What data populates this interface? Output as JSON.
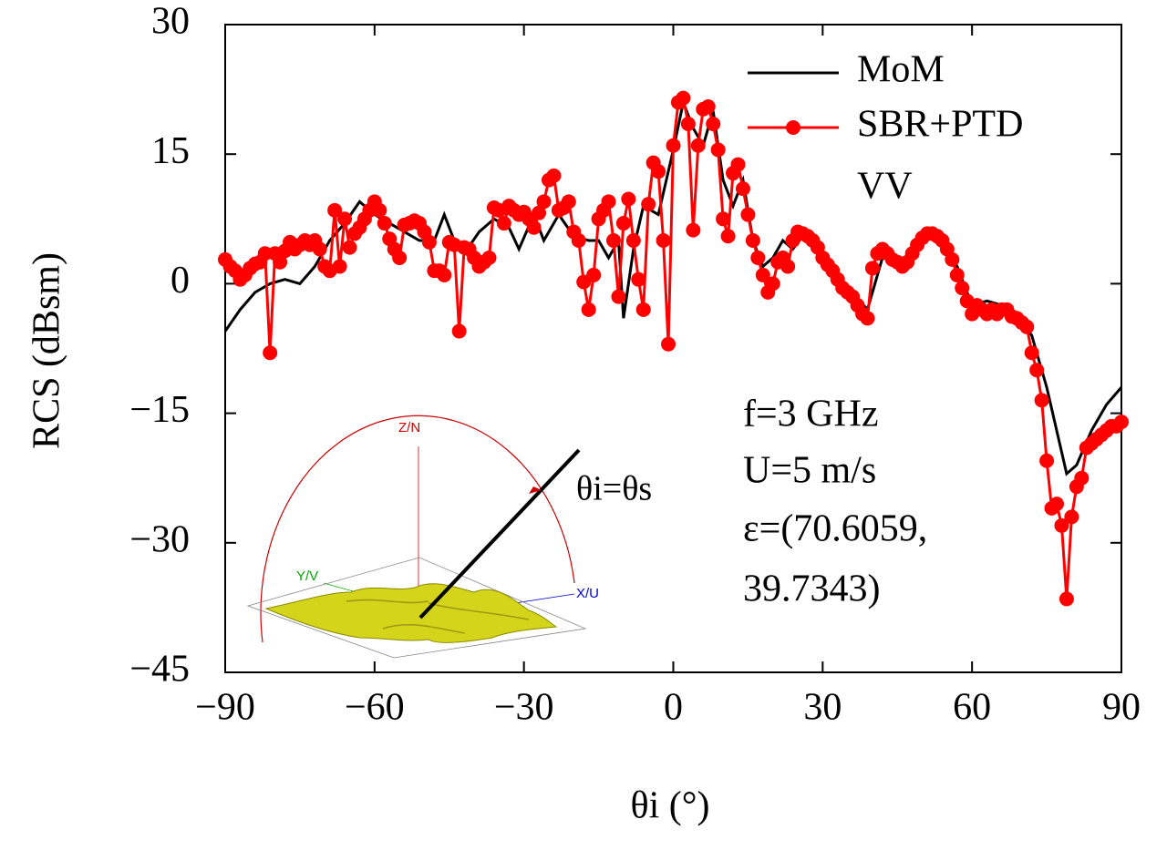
{
  "chart_data": {
    "type": "line",
    "xlabel": "θi (°)",
    "ylabel": "RCS (dBsm)",
    "xlim": [
      -90,
      90
    ],
    "ylim": [
      -45,
      30
    ],
    "xticks": [
      {
        "value": -90,
        "label": "−90"
      },
      {
        "value": -60,
        "label": "−60"
      },
      {
        "value": -30,
        "label": "−30"
      },
      0,
      30,
      60,
      90
    ],
    "yticks": [
      {
        "value": -45,
        "label": "−45"
      },
      {
        "value": -30,
        "label": "−30"
      },
      {
        "value": -15,
        "label": "−15"
      },
      0,
      15,
      30
    ],
    "grid": false,
    "legend": "upper right",
    "legend_note": "VV",
    "annotations": [
      "f=3 GHz",
      "U=5 m/s",
      "ε=(70.6059,",
      "39.7343)"
    ],
    "inset_labels": [
      "Z/N",
      "Y/V",
      "X/U",
      "θi=θs"
    ],
    "series": [
      {
        "name": "MoM",
        "color": "#000000",
        "marker": false,
        "x": [
          -90,
          -87,
          -84,
          -81,
          -78,
          -75,
          -72,
          -69,
          -66,
          -63,
          -60,
          -57,
          -54,
          -51,
          -48,
          -46,
          -44,
          -42,
          -39,
          -36,
          -33,
          -31,
          -28,
          -26,
          -23,
          -20,
          -17,
          -15,
          -13,
          -11,
          -10,
          -8,
          -6,
          -3,
          0,
          2,
          4,
          6,
          8,
          10,
          12,
          14,
          16,
          18,
          20,
          22,
          24,
          26,
          30,
          33,
          36,
          39,
          42,
          45,
          48,
          51,
          54,
          57,
          60,
          63,
          66,
          69,
          72,
          75,
          77,
          79,
          81,
          84,
          87,
          90
        ],
        "values": [
          -5.5,
          -3,
          -1,
          0,
          0.5,
          0,
          2,
          5,
          7,
          9.5,
          8,
          7,
          6,
          5,
          5,
          8,
          5,
          3.5,
          6,
          7.5,
          6.5,
          4,
          8,
          5,
          8,
          5.5,
          5,
          5,
          3,
          5,
          -4,
          4,
          9,
          8,
          15.5,
          21,
          18,
          16,
          20,
          12,
          9,
          12,
          5,
          2,
          3,
          5,
          4,
          5.5,
          3.5,
          0.5,
          -1,
          -3,
          3,
          2.5,
          3,
          5.5,
          5,
          2,
          -2.5,
          -2,
          -2.5,
          -3.5,
          -6,
          -12,
          -17,
          -22,
          -21,
          -17,
          -14,
          -12
        ]
      },
      {
        "name": "SBR+PTD",
        "color": "#ff0000",
        "marker": true,
        "x": [
          -90,
          -89,
          -88,
          -87,
          -86,
          -85,
          -84,
          -83,
          -82,
          -81,
          -80,
          -79,
          -78,
          -77,
          -76,
          -75,
          -74,
          -73,
          -72,
          -71,
          -70,
          -69,
          -68,
          -67,
          -66,
          -65,
          -64,
          -63,
          -62,
          -61,
          -60,
          -59,
          -58,
          -57,
          -56,
          -55,
          -54,
          -53,
          -52,
          -51,
          -50,
          -49,
          -48,
          -47,
          -46,
          -45,
          -44,
          -43,
          -42,
          -41,
          -40,
          -39,
          -38,
          -37,
          -36,
          -35,
          -34,
          -33,
          -32,
          -31,
          -30,
          -29,
          -28,
          -27,
          -26,
          -25,
          -24,
          -23,
          -22,
          -21,
          -20,
          -19,
          -18,
          -17,
          -16,
          -15,
          -14,
          -13,
          -12,
          -11,
          -10,
          -9,
          -8,
          -7,
          -6,
          -5,
          -4,
          -3,
          -2,
          -1,
          0,
          1,
          2,
          3,
          4,
          5,
          6,
          7,
          8,
          9,
          10,
          11,
          12,
          13,
          14,
          15,
          16,
          17,
          18,
          19,
          20,
          21,
          22,
          23,
          24,
          25,
          26,
          27,
          28,
          29,
          30,
          31,
          32,
          33,
          34,
          35,
          36,
          37,
          38,
          39,
          40,
          41,
          42,
          43,
          44,
          45,
          46,
          47,
          48,
          49,
          50,
          51,
          52,
          53,
          54,
          55,
          56,
          57,
          58,
          59,
          60,
          61,
          62,
          63,
          64,
          65,
          66,
          67,
          68,
          69,
          70,
          71,
          72,
          73,
          74,
          75,
          76,
          77,
          78,
          79,
          80,
          81,
          82,
          83,
          84,
          85,
          86,
          87,
          88,
          89,
          90
        ],
        "values": [
          2.8,
          2,
          1.5,
          0.5,
          1,
          1.8,
          2.3,
          2.5,
          3.5,
          -8,
          3.5,
          2.5,
          3.8,
          4.8,
          4,
          4.5,
          5,
          4.5,
          5,
          4,
          2,
          1.5,
          8.5,
          2,
          7.5,
          4.2,
          5.8,
          6.5,
          7.5,
          8.5,
          9.5,
          8.5,
          7,
          5.2,
          4,
          3,
          6.8,
          7,
          7.3,
          7,
          6,
          4.8,
          1.5,
          1.5,
          1,
          4.8,
          4.5,
          -5.5,
          4.2,
          4,
          3,
          2,
          2.5,
          3,
          8.8,
          8.5,
          7,
          9,
          8.5,
          8,
          8.3,
          7.5,
          6.5,
          8.2,
          9.5,
          12,
          12.5,
          8.5,
          8.8,
          9.5,
          6,
          5,
          0.2,
          -3,
          1,
          7.5,
          8.5,
          9.5,
          5,
          -1.5,
          7,
          9.8,
          5,
          0.5,
          -3,
          9.2,
          14,
          13,
          5,
          -7,
          16,
          21,
          21.5,
          18.5,
          6.2,
          16,
          20.2,
          20.5,
          18.5,
          15.5,
          7.5,
          5.5,
          12.8,
          13.8,
          11,
          8,
          5,
          3,
          1,
          -1,
          0,
          2.5,
          3,
          2,
          5,
          6,
          5.8,
          5.5,
          5,
          4.2,
          3,
          2.2,
          1.5,
          0.5,
          -0.5,
          -1,
          -1.5,
          -2.5,
          -3.5,
          -4,
          1.8,
          3.5,
          4,
          3.5,
          2.8,
          2.5,
          2,
          2.5,
          3.5,
          4.5,
          5.3,
          5.8,
          5.8,
          5.5,
          5,
          4,
          2.8,
          1,
          -0.5,
          -2,
          -3.5,
          -2.5,
          -3,
          -3.5,
          -3,
          -3.5,
          -3,
          -3,
          -3.8,
          -4,
          -4.5,
          -5,
          -8,
          -10,
          -13.5,
          -20.5,
          -26,
          -25.5,
          -28,
          -36.5,
          -27,
          -23.5,
          -22.5,
          -19,
          -18.5,
          -18,
          -17.5,
          -17,
          -16.5,
          -16.5,
          -16
        ]
      }
    ]
  }
}
